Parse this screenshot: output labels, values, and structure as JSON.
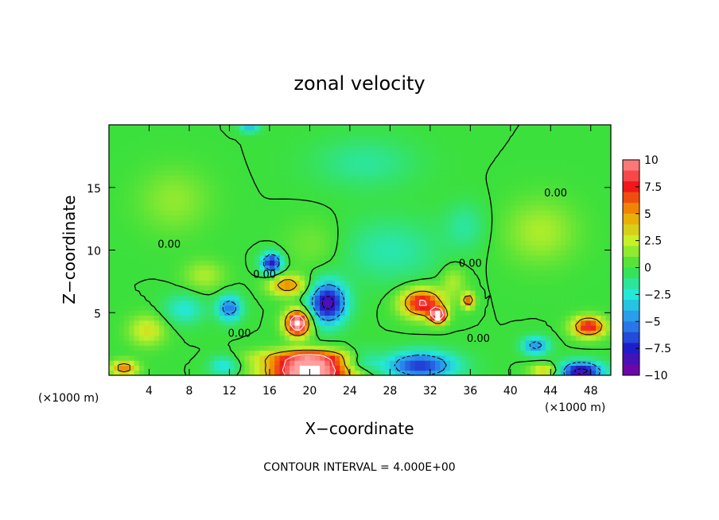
{
  "chart_data": {
    "type": "heatmap",
    "title": "zonal velocity",
    "xlabel": "X−coordinate",
    "ylabel": "Z−coordinate",
    "x_unit_left": "(×1000 m)",
    "x_unit_right": "(×1000 m)",
    "footer": "CONTOUR INTERVAL = 4.000E+00",
    "xlim": [
      0,
      50
    ],
    "ylim": [
      0,
      20
    ],
    "x_ticks": [
      4,
      8,
      12,
      16,
      20,
      24,
      28,
      32,
      36,
      40,
      44,
      48
    ],
    "x_tick_labels": [
      "4",
      "8",
      "12",
      "16",
      "20",
      "24",
      "28",
      "32",
      "36",
      "40",
      "44",
      "48"
    ],
    "y_ticks": [
      5,
      10,
      15
    ],
    "y_tick_labels": [
      "5",
      "10",
      "15"
    ],
    "colorbar": {
      "ticks": [
        10,
        7.5,
        5,
        2.5,
        0,
        -2.5,
        -5,
        -7.5,
        -10
      ],
      "tick_labels": [
        "10",
        "7.5",
        "5",
        "2.5",
        "0",
        "−2.5",
        "−5",
        "−7.5",
        "−10"
      ],
      "range": [
        -10,
        10
      ]
    },
    "contour_labels": [
      {
        "text": "0.00",
        "x": 44.5,
        "z": 14.6
      },
      {
        "text": "0.00",
        "x": 6.0,
        "z": 10.5
      },
      {
        "text": "0.00",
        "x": 15.5,
        "z": 8.1
      },
      {
        "text": "0.00",
        "x": 36.0,
        "z": 9.0
      },
      {
        "text": "0.00",
        "x": 13.0,
        "z": 3.4
      },
      {
        "text": "0.00",
        "x": 36.8,
        "z": 3.0
      }
    ],
    "features": [
      {
        "x": 20.0,
        "z": 0.3,
        "v": 12,
        "sx": 4.2,
        "sz": 1.2
      },
      {
        "x": 20.0,
        "z": 1.5,
        "v": 5,
        "sx": 5.0,
        "sz": 0.6
      },
      {
        "x": 18.8,
        "z": 4.2,
        "v": 12,
        "sx": 1.2,
        "sz": 1.0
      },
      {
        "x": 21.8,
        "z": 5.8,
        "v": -9,
        "sx": 1.8,
        "sz": 1.6
      },
      {
        "x": 17.8,
        "z": 7.2,
        "v": 5.5,
        "sx": 1.8,
        "sz": 0.8
      },
      {
        "x": 16.2,
        "z": 9.0,
        "v": -8,
        "sx": 1.0,
        "sz": 0.8
      },
      {
        "x": 31.2,
        "z": 5.8,
        "v": 8.5,
        "sx": 2.0,
        "sz": 1.1
      },
      {
        "x": 32.8,
        "z": 4.8,
        "v": 11,
        "sx": 0.8,
        "sz": 0.6
      },
      {
        "x": 35.8,
        "z": 6.0,
        "v": 6.5,
        "sx": 0.6,
        "sz": 0.6
      },
      {
        "x": 34.3,
        "z": 7.5,
        "v": 2,
        "sx": 1.2,
        "sz": 1.2
      },
      {
        "x": 47.8,
        "z": 3.9,
        "v": 8,
        "sx": 1.6,
        "sz": 0.8
      },
      {
        "x": 47.0,
        "z": 0.3,
        "v": -9,
        "sx": 2.2,
        "sz": 0.8
      },
      {
        "x": 31.0,
        "z": 0.8,
        "v": -7,
        "sx": 3.5,
        "sz": 1.1
      },
      {
        "x": 25.0,
        "z": 1.2,
        "v": -3.5,
        "sx": 2.0,
        "sz": 0.9
      },
      {
        "x": 42.5,
        "z": 2.4,
        "v": -5,
        "sx": 1.3,
        "sz": 0.7
      },
      {
        "x": 12.0,
        "z": 5.4,
        "v": -5.5,
        "sx": 1.2,
        "sz": 1.0
      },
      {
        "x": 3.8,
        "z": 3.6,
        "v": 3,
        "sx": 1.8,
        "sz": 1.2
      },
      {
        "x": 7.5,
        "z": 5.3,
        "v": -2.5,
        "sx": 2.0,
        "sz": 1.2
      },
      {
        "x": 1.5,
        "z": 0.6,
        "v": 5.5,
        "sx": 1.3,
        "sz": 0.6
      },
      {
        "x": 43.5,
        "z": 0.4,
        "v": 4,
        "sx": 1.5,
        "sz": 0.5
      },
      {
        "x": 25.5,
        "z": 17.0,
        "v": -1.5,
        "sx": 5.0,
        "sz": 2.0
      },
      {
        "x": 6.5,
        "z": 14.0,
        "v": 1.5,
        "sx": 3.5,
        "sz": 2.5
      },
      {
        "x": 28.0,
        "z": 10.0,
        "v": -1.8,
        "sx": 5.0,
        "sz": 2.5
      },
      {
        "x": 43.0,
        "z": 11.5,
        "v": 2.0,
        "sx": 3.5,
        "sz": 2.5
      },
      {
        "x": 35.5,
        "z": 12.0,
        "v": -1.5,
        "sx": 2.0,
        "sz": 1.8
      },
      {
        "x": 20.5,
        "z": 10.5,
        "v": 1.0,
        "sx": 3.0,
        "sz": 2.0
      },
      {
        "x": 11.5,
        "z": 0.8,
        "v": -3.0,
        "sx": 1.5,
        "sz": 0.8
      },
      {
        "x": 9.5,
        "z": 8.0,
        "v": 2.0,
        "sx": 2.0,
        "sz": 1.2
      },
      {
        "x": 14.0,
        "z": 19.8,
        "v": -3.5,
        "sx": 1.0,
        "sz": 0.4
      }
    ]
  }
}
